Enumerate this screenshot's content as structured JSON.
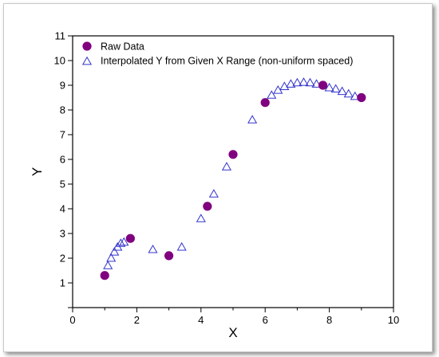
{
  "chart_data": {
    "type": "scatter",
    "title": "",
    "xlabel": "X",
    "ylabel": "Y",
    "xlim": [
      0,
      10
    ],
    "ylim": [
      0,
      11
    ],
    "xticks": [
      "0",
      "2",
      "4",
      "6",
      "8",
      "10"
    ],
    "yticks": [
      "1",
      "2",
      "3",
      "4",
      "5",
      "6",
      "7",
      "8",
      "9",
      "10",
      "11"
    ],
    "grid": false,
    "legend_position": "top-left",
    "series": [
      {
        "name": "Raw Data",
        "marker": "filled-circle",
        "color": "#800080",
        "x": [
          1.0,
          1.8,
          3.0,
          4.2,
          5.0,
          6.0,
          7.8,
          9.0
        ],
        "y": [
          1.3,
          2.8,
          2.1,
          4.1,
          6.2,
          8.3,
          9.0,
          8.5
        ]
      },
      {
        "name": "Interpolated Y from Given X Range (non-uniform spaced)",
        "marker": "open-triangle",
        "color": "#3333cc",
        "x": [
          1.1,
          1.2,
          1.3,
          1.4,
          1.5,
          1.6,
          2.5,
          3.4,
          4.0,
          4.4,
          4.8,
          5.6,
          6.2,
          6.4,
          6.6,
          6.8,
          7.0,
          7.2,
          7.4,
          7.6,
          8.0,
          8.2,
          8.4,
          8.6,
          8.8
        ],
        "y": [
          1.7,
          2.0,
          2.25,
          2.45,
          2.6,
          2.65,
          2.35,
          2.45,
          3.6,
          4.6,
          5.7,
          7.6,
          8.6,
          8.8,
          8.95,
          9.05,
          9.1,
          9.12,
          9.1,
          9.05,
          8.9,
          8.85,
          8.75,
          8.65,
          8.55
        ]
      }
    ]
  }
}
